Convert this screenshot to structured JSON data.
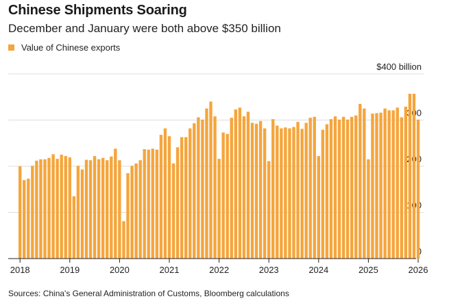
{
  "header": {
    "title": "Chinese Shipments Soaring",
    "subtitle": "December and January were both above $350 billion"
  },
  "legend": {
    "label": "Value of Chinese exports"
  },
  "footer": {
    "source": "Sources: China's General Administration of Customs, Bloomberg calculations"
  },
  "colors": {
    "bar": "#F5A53C",
    "grid": "#dddddd",
    "baseline": "#222222",
    "text": "#222222"
  },
  "chart_data": {
    "type": "bar",
    "title": "Chinese Shipments Soaring",
    "subtitle": "December and January were both above $350 billion",
    "ylabel": "",
    "xlabel": "",
    "ylim": [
      0,
      400
    ],
    "y_ticks": [
      {
        "value": 0,
        "label": "0"
      },
      {
        "value": 100,
        "label": "100"
      },
      {
        "value": 200,
        "label": "200"
      },
      {
        "value": 300,
        "label": "300"
      },
      {
        "value": 400,
        "label": "$400 billion"
      }
    ],
    "x_ticks": [
      "2018",
      "2019",
      "2020",
      "2021",
      "2022",
      "2023",
      "2024",
      "2025",
      "2026"
    ],
    "grid": true,
    "legend_position": "top-left",
    "series": [
      {
        "name": "Value of Chinese exports",
        "values": [
          200,
          170,
          173,
          201,
          212,
          215,
          215,
          218,
          226,
          216,
          225,
          222,
          219,
          135,
          201,
          193,
          214,
          213,
          222,
          215,
          218,
          213,
          221,
          238,
          213,
          81,
          185,
          201,
          206,
          213,
          237,
          236,
          238,
          236,
          268,
          282,
          265,
          206,
          241,
          263,
          263,
          282,
          293,
          306,
          301,
          325,
          340,
          308,
          216,
          273,
          270,
          305,
          323,
          327,
          308,
          318,
          294,
          292,
          298,
          282,
          211,
          302,
          288,
          282,
          284,
          282,
          285,
          296,
          281,
          294,
          305,
          307,
          222,
          279,
          291,
          302,
          308,
          301,
          307,
          301,
          307,
          310,
          335,
          325,
          215,
          314,
          315,
          316,
          325,
          321,
          321,
          327,
          306,
          329,
          357,
          357,
          301
        ]
      }
    ]
  }
}
